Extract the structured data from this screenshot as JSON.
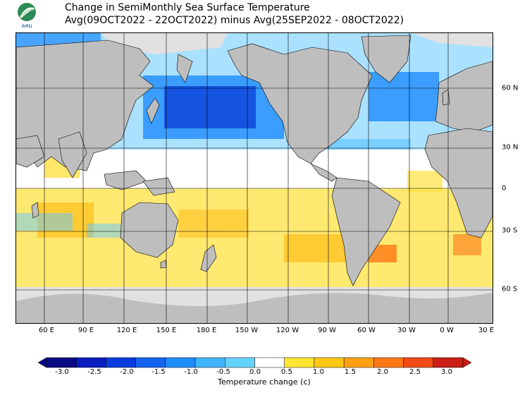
{
  "header": {
    "logo_text": "ลสม",
    "title_line1": "Change in SemiMonthly Sea Surface Temperature",
    "title_line2": "Avg(09OCT2022 - 22OCT2022) minus Avg(25SEP2022 - 08OCT2022)"
  },
  "map": {
    "lon_labels": [
      "60 E",
      "90 E",
      "120 E",
      "150 E",
      "180 E",
      "150 W",
      "120 W",
      "90 W",
      "60 W",
      "30 W",
      "0 W",
      "30 E"
    ],
    "lat_labels": [
      "60 N",
      "30 N",
      "0",
      "30 S",
      "60 S"
    ],
    "colors": {
      "land": "#bebebe",
      "ice": "#e1e1e1",
      "grid": "#000000",
      "cool_strong": "#0a3cd7",
      "cool": "#1e8cff",
      "cool_light": "#64c8ff",
      "neutral": "#ffffff",
      "warm_light": "#ffe141",
      "warm": "#ffbe19",
      "warm_strong": "#ff7814",
      "hot": "#dc2d14"
    }
  },
  "legend": {
    "title": "Temperature change  (c)",
    "ticks": [
      "-3.0",
      "-2.5",
      "-2.0",
      "-1.5",
      "-1.0",
      "-0.5",
      "0.0",
      "0.5",
      "1.0",
      "1.5",
      "2.0",
      "2.5",
      "3.0"
    ],
    "colors": [
      "#0a0a82",
      "#0a1ebe",
      "#0a3cdc",
      "#1464f0",
      "#1e8cff",
      "#41b4ff",
      "#64d2ff",
      "#ffffff",
      "#ffe632",
      "#ffc814",
      "#ffa014",
      "#ff7814",
      "#f04b14",
      "#c81e14"
    ]
  }
}
